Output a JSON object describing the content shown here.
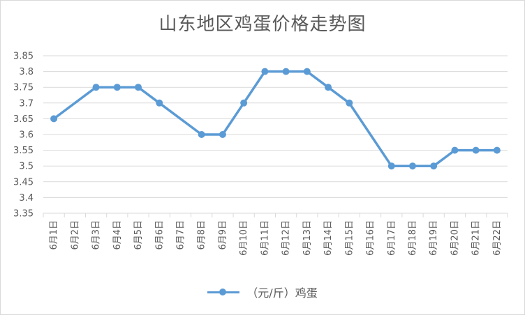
{
  "chart_data": {
    "type": "line",
    "title": "山东地区鸡蛋价格走势图",
    "categories": [
      "6月1日",
      "6月2日",
      "6月3日",
      "6月4日",
      "6月5日",
      "6月6日",
      "6月7日",
      "6月8日",
      "6月9日",
      "6月10日",
      "6月11日",
      "6月12日",
      "6月13日",
      "6月14日",
      "6月15日",
      "6月16日",
      "6月17日",
      "6月18日",
      "6月19日",
      "6月20日",
      "6月21日",
      "6月22日"
    ],
    "series": [
      {
        "name": "（元/斤）鸡蛋",
        "color": "#5b9bd5",
        "values": [
          3.65,
          null,
          3.75,
          3.75,
          3.75,
          3.7,
          null,
          3.6,
          3.6,
          3.7,
          3.8,
          3.8,
          3.8,
          3.75,
          3.7,
          null,
          3.5,
          3.5,
          3.5,
          3.55,
          3.55,
          3.55
        ]
      }
    ],
    "ylim": [
      3.35,
      3.85
    ],
    "yticks": [
      "3.35",
      "3.4",
      "3.45",
      "3.5",
      "3.55",
      "3.6",
      "3.65",
      "3.7",
      "3.75",
      "3.8",
      "3.85"
    ],
    "xlabel": "",
    "ylabel": "",
    "grid": true,
    "legend_position": "bottom"
  }
}
